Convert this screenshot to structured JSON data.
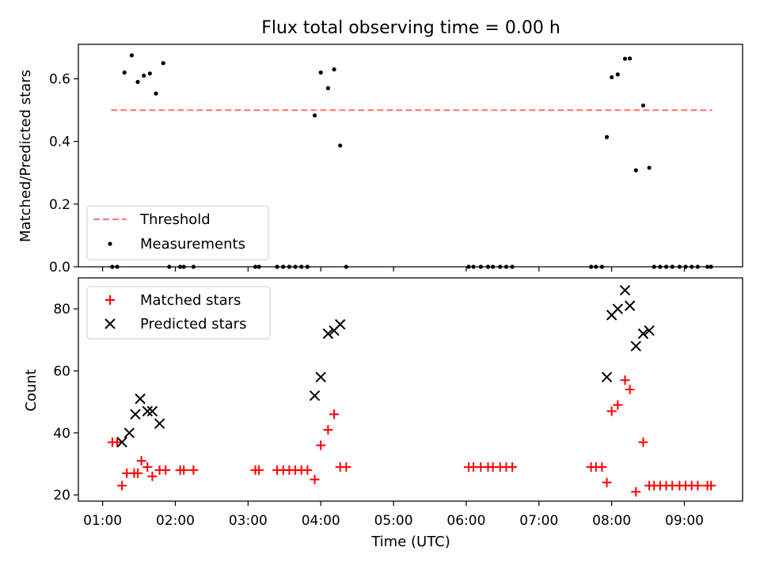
{
  "chart_data": [
    {
      "type": "scatter",
      "title": "Flux total observing time = 0.00 h",
      "xlabel": "",
      "ylabel": "Matched/Predicted stars",
      "xlim": [
        "00:40",
        "09:48"
      ],
      "ylim": [
        0,
        0.71
      ],
      "yticks": [
        "0.0",
        "0.2",
        "0.4",
        "0.6"
      ],
      "ytick_values": [
        0.0,
        0.2,
        0.4,
        0.6
      ],
      "xticks_shown_labels": false,
      "grid": false,
      "legend_position": "lower left",
      "threshold": {
        "name": "Threshold",
        "y": 0.5,
        "x_range": [
          "01:07",
          "09:23"
        ],
        "color": "#ff8080",
        "style": "dashed"
      },
      "series": [
        {
          "name": "Measurements",
          "marker": "dot",
          "color": "#000000",
          "points": [
            [
              "01:08",
              0.0
            ],
            [
              "01:12",
              0.0
            ],
            [
              "01:18",
              0.62
            ],
            [
              "01:24",
              0.675
            ],
            [
              "01:29",
              0.59
            ],
            [
              "01:34",
              0.61
            ],
            [
              "01:39",
              0.617
            ],
            [
              "01:44",
              0.553
            ],
            [
              "01:50",
              0.65
            ],
            [
              "01:55",
              0.0
            ],
            [
              "02:04",
              0.0
            ],
            [
              "02:07",
              0.0
            ],
            [
              "02:15",
              0.0
            ],
            [
              "03:06",
              0.0
            ],
            [
              "03:09",
              0.0
            ],
            [
              "03:24",
              0.0
            ],
            [
              "03:29",
              0.0
            ],
            [
              "03:34",
              0.0
            ],
            [
              "03:39",
              0.0
            ],
            [
              "03:44",
              0.0
            ],
            [
              "03:49",
              0.0
            ],
            [
              "03:55",
              0.483
            ],
            [
              "04:00",
              0.62
            ],
            [
              "04:06",
              0.57
            ],
            [
              "04:11",
              0.63
            ],
            [
              "04:16",
              0.387
            ],
            [
              "04:21",
              0.0
            ],
            [
              "06:02",
              0.0
            ],
            [
              "06:06",
              0.0
            ],
            [
              "06:12",
              0.0
            ],
            [
              "06:18",
              0.0
            ],
            [
              "06:22",
              0.0
            ],
            [
              "06:28",
              0.0
            ],
            [
              "06:33",
              0.0
            ],
            [
              "06:38",
              0.0
            ],
            [
              "07:43",
              0.0
            ],
            [
              "07:47",
              0.0
            ],
            [
              "07:52",
              0.0
            ],
            [
              "07:56",
              0.414
            ],
            [
              "08:00",
              0.605
            ],
            [
              "08:05",
              0.614
            ],
            [
              "08:11",
              0.664
            ],
            [
              "08:15",
              0.665
            ],
            [
              "08:20",
              0.308
            ],
            [
              "08:26",
              0.515
            ],
            [
              "08:31",
              0.316
            ],
            [
              "08:35",
              0.0
            ],
            [
              "08:40",
              0.0
            ],
            [
              "08:45",
              0.0
            ],
            [
              "08:50",
              0.0
            ],
            [
              "08:56",
              0.0
            ],
            [
              "09:01",
              0.0
            ],
            [
              "09:06",
              0.0
            ],
            [
              "09:11",
              0.0
            ],
            [
              "09:19",
              0.0
            ],
            [
              "09:22",
              0.0
            ]
          ]
        }
      ]
    },
    {
      "type": "scatter",
      "title": "",
      "xlabel": "Time (UTC)",
      "ylabel": "Count",
      "xlim": [
        "00:40",
        "09:48"
      ],
      "ylim": [
        18,
        90
      ],
      "xticks": [
        "01:00",
        "02:00",
        "03:00",
        "04:00",
        "05:00",
        "06:00",
        "07:00",
        "08:00",
        "09:00"
      ],
      "yticks": [
        "20",
        "40",
        "60",
        "80"
      ],
      "ytick_values": [
        20,
        40,
        60,
        80
      ],
      "grid": false,
      "legend_position": "upper left",
      "series": [
        {
          "name": "Matched stars",
          "marker": "plus",
          "color": "#ff0000",
          "points": [
            [
              "01:08",
              37
            ],
            [
              "01:12",
              37
            ],
            [
              "01:16",
              23
            ],
            [
              "01:20",
              27
            ],
            [
              "01:26",
              27
            ],
            [
              "01:29",
              27
            ],
            [
              "01:32",
              31
            ],
            [
              "01:37",
              29
            ],
            [
              "01:41",
              26
            ],
            [
              "01:47",
              28
            ],
            [
              "01:52",
              28
            ],
            [
              "02:04",
              28
            ],
            [
              "02:07",
              28
            ],
            [
              "02:15",
              28
            ],
            [
              "03:06",
              28
            ],
            [
              "03:09",
              28
            ],
            [
              "03:24",
              28
            ],
            [
              "03:29",
              28
            ],
            [
              "03:34",
              28
            ],
            [
              "03:39",
              28
            ],
            [
              "03:44",
              28
            ],
            [
              "03:49",
              28
            ],
            [
              "03:55",
              25
            ],
            [
              "04:00",
              36
            ],
            [
              "04:06",
              41
            ],
            [
              "04:11",
              46
            ],
            [
              "04:16",
              29
            ],
            [
              "04:21",
              29
            ],
            [
              "06:02",
              29
            ],
            [
              "06:06",
              29
            ],
            [
              "06:12",
              29
            ],
            [
              "06:18",
              29
            ],
            [
              "06:22",
              29
            ],
            [
              "06:28",
              29
            ],
            [
              "06:33",
              29
            ],
            [
              "06:38",
              29
            ],
            [
              "07:43",
              29
            ],
            [
              "07:47",
              29
            ],
            [
              "07:52",
              29
            ],
            [
              "07:56",
              24
            ],
            [
              "08:00",
              47
            ],
            [
              "08:05",
              49
            ],
            [
              "08:11",
              57
            ],
            [
              "08:15",
              54
            ],
            [
              "08:20",
              21
            ],
            [
              "08:26",
              37
            ],
            [
              "08:31",
              23
            ],
            [
              "08:35",
              23
            ],
            [
              "08:40",
              23
            ],
            [
              "08:45",
              23
            ],
            [
              "08:50",
              23
            ],
            [
              "08:56",
              23
            ],
            [
              "09:01",
              23
            ],
            [
              "09:06",
              23
            ],
            [
              "09:11",
              23
            ],
            [
              "09:19",
              23
            ],
            [
              "09:22",
              23
            ]
          ]
        },
        {
          "name": "Predicted stars",
          "marker": "cross",
          "color": "#000000",
          "points": [
            [
              "01:16",
              37
            ],
            [
              "01:22",
              40
            ],
            [
              "01:27",
              46
            ],
            [
              "01:31",
              51
            ],
            [
              "01:37",
              47
            ],
            [
              "01:41",
              47
            ],
            [
              "01:47",
              43
            ],
            [
              "03:55",
              52
            ],
            [
              "04:00",
              58
            ],
            [
              "04:06",
              72
            ],
            [
              "04:11",
              73
            ],
            [
              "04:16",
              75
            ],
            [
              "07:56",
              58
            ],
            [
              "08:00",
              78
            ],
            [
              "08:05",
              80
            ],
            [
              "08:11",
              86
            ],
            [
              "08:15",
              81
            ],
            [
              "08:20",
              68
            ],
            [
              "08:26",
              72
            ],
            [
              "08:31",
              73
            ]
          ]
        }
      ]
    }
  ],
  "colors": {
    "background": "#ffffff",
    "axes": "#000000",
    "threshold": "#ff8080",
    "matched": "#ff0000",
    "predicted": "#000000"
  }
}
